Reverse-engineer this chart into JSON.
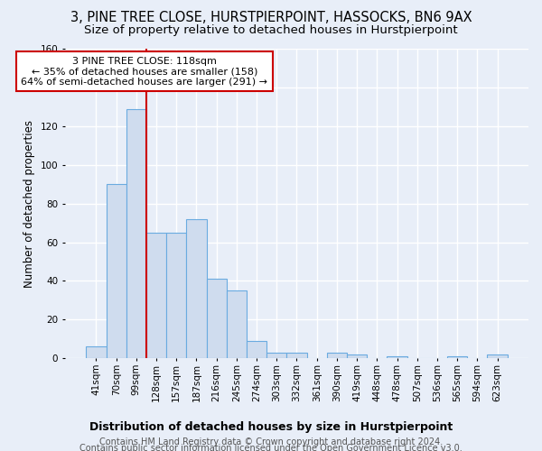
{
  "title": "3, PINE TREE CLOSE, HURSTPIERPOINT, HASSOCKS, BN6 9AX",
  "subtitle": "Size of property relative to detached houses in Hurstpierpoint",
  "xlabel": "Distribution of detached houses by size in Hurstpierpoint",
  "ylabel": "Number of detached properties",
  "categories": [
    "41sqm",
    "70sqm",
    "99sqm",
    "128sqm",
    "157sqm",
    "187sqm",
    "216sqm",
    "245sqm",
    "274sqm",
    "303sqm",
    "332sqm",
    "361sqm",
    "390sqm",
    "419sqm",
    "448sqm",
    "478sqm",
    "507sqm",
    "536sqm",
    "565sqm",
    "594sqm",
    "623sqm"
  ],
  "values": [
    6,
    90,
    129,
    65,
    65,
    72,
    41,
    35,
    9,
    3,
    3,
    0,
    3,
    2,
    0,
    1,
    0,
    0,
    1,
    0,
    2
  ],
  "bar_color": "#cfdcee",
  "bar_edge_color": "#6aabe0",
  "red_line_color": "#cc0000",
  "annotation_line1": "3 PINE TREE CLOSE: 118sqm",
  "annotation_line2": "← 35% of detached houses are smaller (158)",
  "annotation_line3": "64% of semi-detached houses are larger (291) →",
  "annotation_box_facecolor": "#ffffff",
  "annotation_box_edgecolor": "#cc0000",
  "ylim": [
    0,
    160
  ],
  "yticks": [
    0,
    20,
    40,
    60,
    80,
    100,
    120,
    140,
    160
  ],
  "bg_color": "#e8eef8",
  "plot_bg_color": "#e8eef8",
  "grid_color": "#ffffff",
  "title_fontsize": 10.5,
  "subtitle_fontsize": 9.5,
  "xlabel_fontsize": 9,
  "ylabel_fontsize": 8.5,
  "tick_fontsize": 7.5,
  "annotation_fontsize": 8,
  "footer_fontsize": 7,
  "footer_line1": "Contains HM Land Registry data © Crown copyright and database right 2024.",
  "footer_line2": "Contains public sector information licensed under the Open Government Licence v3.0.",
  "red_line_index": 2.5
}
